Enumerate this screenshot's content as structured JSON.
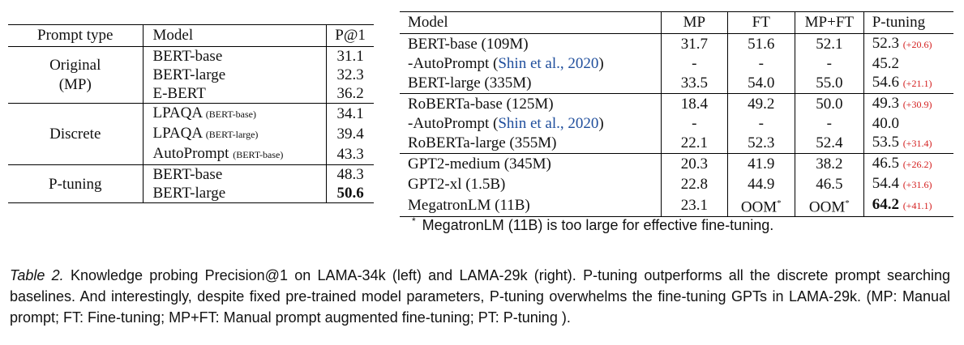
{
  "left_table": {
    "headers": {
      "type": "Prompt type",
      "model": "Model",
      "p1": "P@1"
    },
    "groups": [
      {
        "type_line1": "Original",
        "type_line2": "(MP)",
        "rows": [
          {
            "model": "BERT-base",
            "model_note": "",
            "p1": "31.1"
          },
          {
            "model": "BERT-large",
            "model_note": "",
            "p1": "32.3"
          },
          {
            "model": "E-BERT",
            "model_note": "",
            "p1": "36.2"
          }
        ]
      },
      {
        "type_line1": "Discrete",
        "type_line2": "",
        "rows": [
          {
            "model": "LPAQA",
            "model_note": "(BERT-base)",
            "p1": "34.1"
          },
          {
            "model": "LPAQA",
            "model_note": "(BERT-large)",
            "p1": "39.4"
          },
          {
            "model": "AutoPrompt",
            "model_note": "(BERT-base)",
            "p1": "43.3"
          }
        ]
      },
      {
        "type_line1": "P-tuning",
        "type_line2": "",
        "rows": [
          {
            "model": "BERT-base",
            "model_note": "",
            "p1": "48.3"
          },
          {
            "model": "BERT-large",
            "model_note": "",
            "p1": "50.6"
          }
        ]
      }
    ]
  },
  "right_table": {
    "headers": {
      "model": "Model",
      "mp": "MP",
      "ft": "FT",
      "mpft": "MP+FT",
      "pt": "P-tuning"
    },
    "rows": [
      {
        "model": "BERT-base (109M)",
        "mp": "31.7",
        "ft": "51.6",
        "mpft": "52.1",
        "pt": "52.3",
        "gain": "(+20.6)"
      },
      {
        "model": "-AutoPrompt ",
        "cite": "Shin et al., 2020",
        "cite_open": "(",
        "cite_close": ")",
        "mp": "-",
        "ft": "-",
        "mpft": "-",
        "pt": "45.2",
        "gain": ""
      },
      {
        "model": "BERT-large (335M)",
        "mp": "33.5",
        "ft": "54.0",
        "mpft": "55.0",
        "pt": "54.6",
        "gain": "(+21.1)"
      },
      {
        "model": "RoBERTa-base (125M)",
        "mp": "18.4",
        "ft": "49.2",
        "mpft": "50.0",
        "pt": "49.3",
        "gain": "(+30.9)"
      },
      {
        "model": "-AutoPrompt ",
        "cite": "Shin et al., 2020",
        "cite_open": "(",
        "cite_close": ")",
        "mp": "-",
        "ft": "-",
        "mpft": "-",
        "pt": "40.0",
        "gain": ""
      },
      {
        "model": "RoBERTa-large (355M)",
        "mp": "22.1",
        "ft": "52.3",
        "mpft": "52.4",
        "pt": "53.5",
        "gain": "(+31.4)"
      },
      {
        "model": "GPT2-medium (345M)",
        "mp": "20.3",
        "ft": "41.9",
        "mpft": "38.2",
        "pt": "46.5",
        "gain": "(+26.2)"
      },
      {
        "model": "GPT2-xl (1.5B)",
        "mp": "22.8",
        "ft": "44.9",
        "mpft": "46.5",
        "pt": "54.4",
        "gain": "(+31.6)"
      },
      {
        "model": "MegatronLM (11B)",
        "mp": "23.1",
        "ft": "OOM",
        "ft_sup": "*",
        "mpft": "OOM",
        "mpft_sup": "*",
        "pt": "64.2",
        "gain": "(+41.1)"
      }
    ]
  },
  "footnote": {
    "mark": "*",
    "text": "MegatronLM (11B) is too large for effective fine-tuning."
  },
  "caption": {
    "label": "Table 2.",
    "text": " Knowledge probing Precision@1 on LAMA-34k (left) and LAMA-29k (right). P-tuning outperforms all the discrete prompt searching baselines. And interestingly, despite fixed pre-trained model parameters, P-tuning overwhelms the fine-tuning GPTs in LAMA-29k. (MP: Manual prompt; FT: Fine-tuning; MP+FT: Manual prompt augmented fine-tuning; PT: P-tuning )."
  },
  "colors": {
    "citation": "#1f4e9c",
    "gain": "#d42020"
  }
}
